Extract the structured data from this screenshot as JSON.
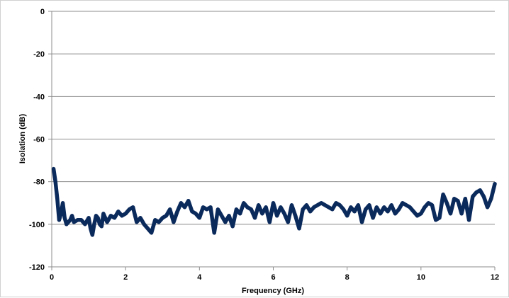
{
  "chart_data": {
    "type": "line",
    "title": "",
    "xlabel": "Frequency (GHz)",
    "ylabel": "Isolation (dB)",
    "xlim": [
      0,
      12
    ],
    "ylim": [
      -120,
      0
    ],
    "x_ticks": [
      0,
      2,
      4,
      6,
      8,
      10,
      12
    ],
    "y_ticks": [
      0,
      -20,
      -40,
      -60,
      -80,
      -100,
      -120
    ],
    "x_tick_labels": [
      "0",
      "2",
      "4",
      "6",
      "8",
      "10",
      "12"
    ],
    "y_tick_labels": [
      "0",
      "-20",
      "-40",
      "-60",
      "-80",
      "-100",
      "-120"
    ],
    "grid": "horizontal",
    "legend": "none",
    "series": [
      {
        "color": "#0b2a5c",
        "x": [
          0.05,
          0.1,
          0.15,
          0.2,
          0.25,
          0.3,
          0.35,
          0.4,
          0.45,
          0.5,
          0.55,
          0.6,
          0.7,
          0.8,
          0.9,
          1.0,
          1.05,
          1.1,
          1.15,
          1.2,
          1.25,
          1.3,
          1.35,
          1.4,
          1.5,
          1.6,
          1.7,
          1.8,
          1.9,
          2.0,
          2.1,
          2.2,
          2.3,
          2.4,
          2.5,
          2.6,
          2.7,
          2.8,
          2.9,
          3.0,
          3.1,
          3.2,
          3.3,
          3.4,
          3.5,
          3.6,
          3.7,
          3.8,
          3.9,
          4.0,
          4.1,
          4.2,
          4.3,
          4.4,
          4.5,
          4.6,
          4.7,
          4.8,
          4.9,
          5.0,
          5.1,
          5.2,
          5.3,
          5.4,
          5.5,
          5.6,
          5.7,
          5.8,
          5.9,
          6.0,
          6.1,
          6.2,
          6.3,
          6.4,
          6.5,
          6.6,
          6.7,
          6.8,
          6.9,
          7.0,
          7.1,
          7.2,
          7.3,
          7.4,
          7.5,
          7.6,
          7.7,
          7.8,
          7.9,
          8.0,
          8.1,
          8.2,
          8.3,
          8.4,
          8.5,
          8.6,
          8.7,
          8.8,
          8.9,
          9.0,
          9.1,
          9.2,
          9.3,
          9.4,
          9.5,
          9.6,
          9.7,
          9.8,
          9.9,
          10.0,
          10.1,
          10.2,
          10.3,
          10.4,
          10.5,
          10.6,
          10.7,
          10.8,
          10.9,
          11.0,
          11.1,
          11.2,
          11.3,
          11.4,
          11.5,
          11.6,
          11.7,
          11.8,
          11.9,
          12.0
        ],
        "y": [
          -74,
          -80,
          -88,
          -98,
          -95,
          -90,
          -97,
          -100,
          -99,
          -98,
          -96,
          -99,
          -98,
          -98,
          -100,
          -97,
          -102,
          -105,
          -100,
          -96,
          -97,
          -100,
          -101,
          -95,
          -99,
          -96,
          -97,
          -94,
          -96,
          -95,
          -93,
          -92,
          -99,
          -97,
          -100,
          -102,
          -104,
          -98,
          -99,
          -97,
          -96,
          -93,
          -99,
          -94,
          -90,
          -92,
          -89,
          -94,
          -95,
          -97,
          -92,
          -93,
          -92,
          -104,
          -93,
          -96,
          -99,
          -96,
          -101,
          -93,
          -95,
          -90,
          -92,
          -93,
          -97,
          -91,
          -95,
          -92,
          -99,
          -90,
          -96,
          -92,
          -95,
          -99,
          -91,
          -96,
          -102,
          -93,
          -91,
          -94,
          -92,
          -91,
          -90,
          -91,
          -92,
          -93,
          -90,
          -91,
          -93,
          -96,
          -92,
          -94,
          -91,
          -99,
          -93,
          -91,
          -97,
          -92,
          -95,
          -92,
          -94,
          -91,
          -95,
          -93,
          -90,
          -91,
          -92,
          -94,
          -96,
          -95,
          -92,
          -90,
          -91,
          -98,
          -97,
          -86,
          -90,
          -95,
          -88,
          -89,
          -95,
          -88,
          -98,
          -87,
          -85,
          -84,
          -87,
          -92,
          -88,
          -81
        ]
      }
    ]
  }
}
